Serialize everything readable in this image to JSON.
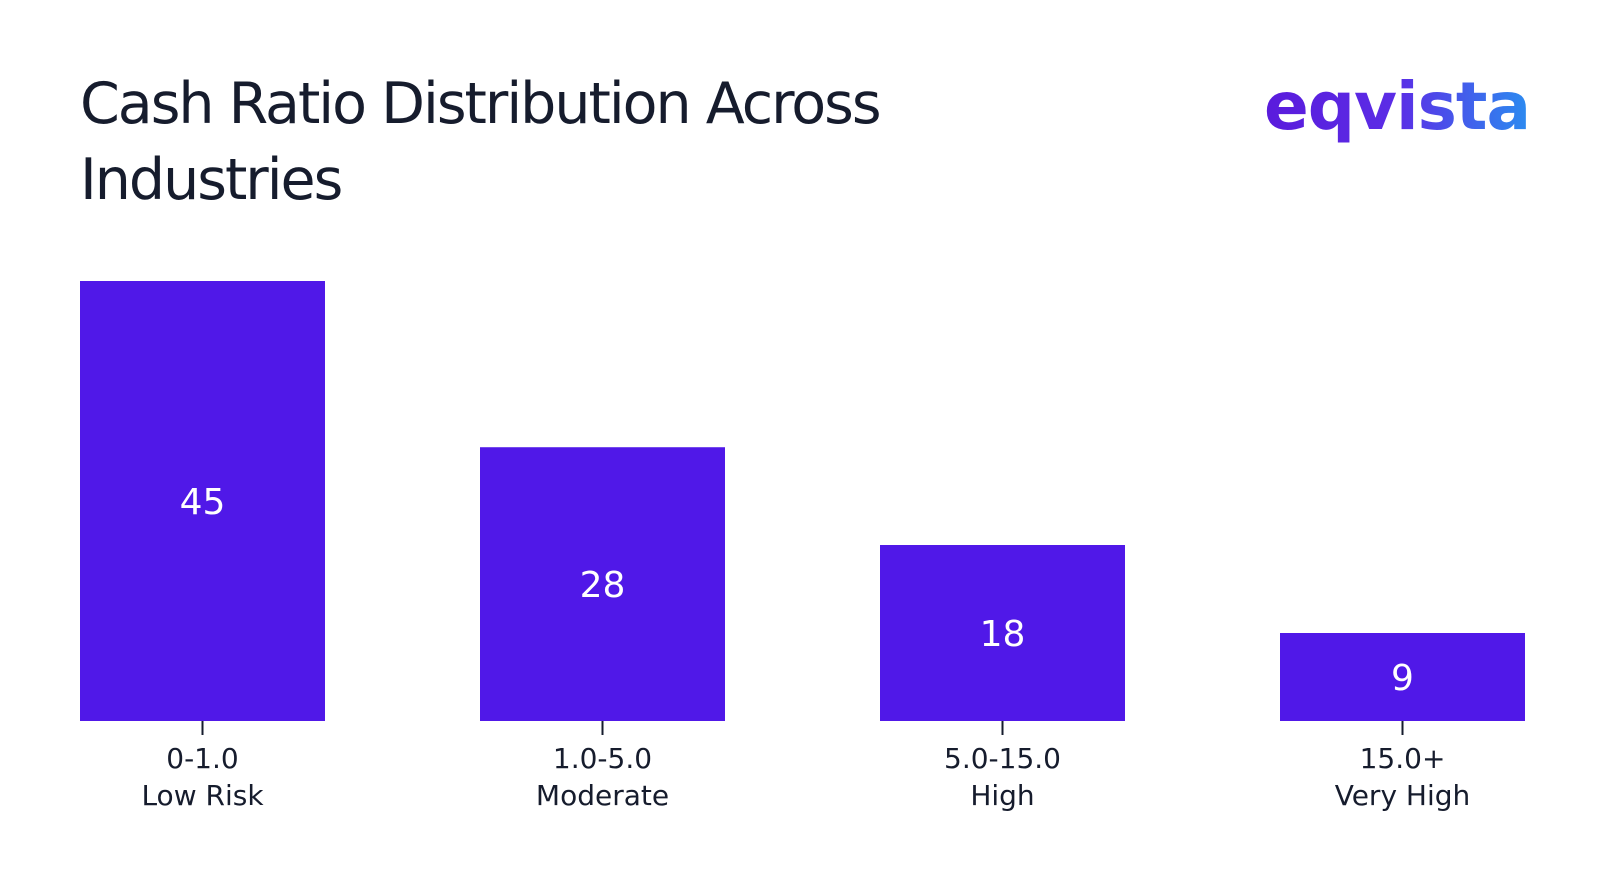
{
  "colors": {
    "bar": "#5018e8",
    "bar_label": "#ffffff",
    "axis_text": "#161c2d",
    "title": "#161c2d"
  },
  "logo": "eqvista",
  "chart_data": {
    "type": "bar",
    "title": "Cash Ratio Distribution Across Industries",
    "xlabel": "",
    "ylabel": "",
    "categories": [
      {
        "range": "0-1.0",
        "label": "Low Risk"
      },
      {
        "range": "1.0-5.0",
        "label": "Moderate"
      },
      {
        "range": "5.0-15.0",
        "label": "High"
      },
      {
        "range": "15.0+",
        "label": "Very High"
      }
    ],
    "values": [
      45,
      28,
      18,
      9
    ],
    "ylim": [
      0,
      45
    ],
    "grid": false,
    "data_labels": true
  }
}
